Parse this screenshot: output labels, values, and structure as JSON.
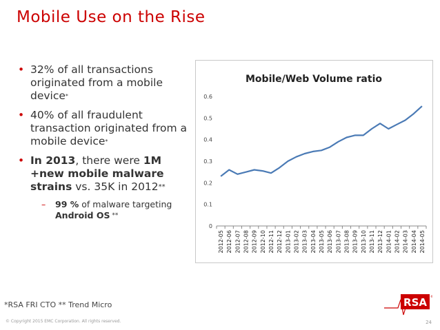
{
  "slide": {
    "title": "Mobile Use on the Rise",
    "bullets": [
      {
        "text": "32% of all transactions originated from a mobile device",
        "mark": "*"
      },
      {
        "text": "40% of all fraudulent transaction originated from a mobile device",
        "mark": "*"
      }
    ],
    "bullet3": {
      "part1_bold": "In 2013",
      "part2": ", there were ",
      "part3_bold": "1M +new mobile malware strains",
      "part4": " vs. 35K in 2012",
      "mark": "**"
    },
    "sub": {
      "bold": "99 %",
      "text": " of malware targeting ",
      "bold2": "Android OS",
      "mark": " **"
    },
    "footnote": "*RSA FRI CTO ** Trend Micro",
    "copyright": "© Copyright 2015 EMC Corporation. All rights reserved.",
    "page_number": "24",
    "logo_text": "RSA"
  },
  "colors": {
    "accent": "#cc0000",
    "line": "#4a7ab5"
  },
  "chart_data": {
    "type": "line",
    "title": "Mobile/Web Volume ratio",
    "categories": [
      "2012-05",
      "2012-06",
      "2012-07",
      "2012-08",
      "2012-09",
      "2012-10",
      "2012-11",
      "2012-12",
      "2013-01",
      "2013-02",
      "2013-03",
      "2013-04",
      "2013-05",
      "2013-06",
      "2013-07",
      "2013-08",
      "2013-09",
      "2013-10",
      "2013-11",
      "2013-12",
      "2014-01",
      "2014-02",
      "2014-03",
      "2014-04",
      "2014-05"
    ],
    "values": [
      0.23,
      0.26,
      0.24,
      0.25,
      0.26,
      0.255,
      0.245,
      0.27,
      0.3,
      0.32,
      0.335,
      0.345,
      0.35,
      0.365,
      0.39,
      0.41,
      0.42,
      0.42,
      0.45,
      0.475,
      0.45,
      0.47,
      0.49,
      0.52,
      0.555
    ],
    "yticks": [
      "0",
      "0.1",
      "0.2",
      "0.3",
      "0.4",
      "0.5",
      "0.6"
    ],
    "ylim": [
      0,
      0.6
    ],
    "grid": false,
    "legend": "none"
  }
}
